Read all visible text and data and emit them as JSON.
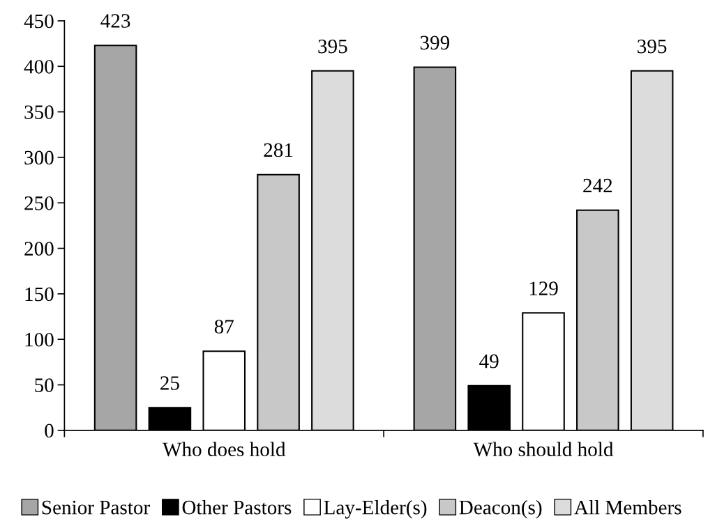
{
  "chart_data": {
    "type": "bar",
    "categories": [
      "Who does hold",
      "Who should hold"
    ],
    "series": [
      {
        "name": "Senior Pastor",
        "color": "#a6a6a6",
        "values": [
          423,
          399
        ]
      },
      {
        "name": "Other Pastors",
        "color": "#000000",
        "values": [
          25,
          49
        ]
      },
      {
        "name": "Lay-Elder(s)",
        "color": "#ffffff",
        "values": [
          87,
          129
        ]
      },
      {
        "name": "Deacon(s)",
        "color": "#c8c8c8",
        "values": [
          281,
          242
        ]
      },
      {
        "name": "All Members",
        "color": "#dcdcdc",
        "values": [
          395,
          395
        ]
      }
    ],
    "ylim": [
      0,
      450
    ],
    "yticks": [
      0,
      50,
      100,
      150,
      200,
      250,
      300,
      350,
      400,
      450
    ],
    "grid": false,
    "legend": "bottom",
    "data_labels": true
  }
}
